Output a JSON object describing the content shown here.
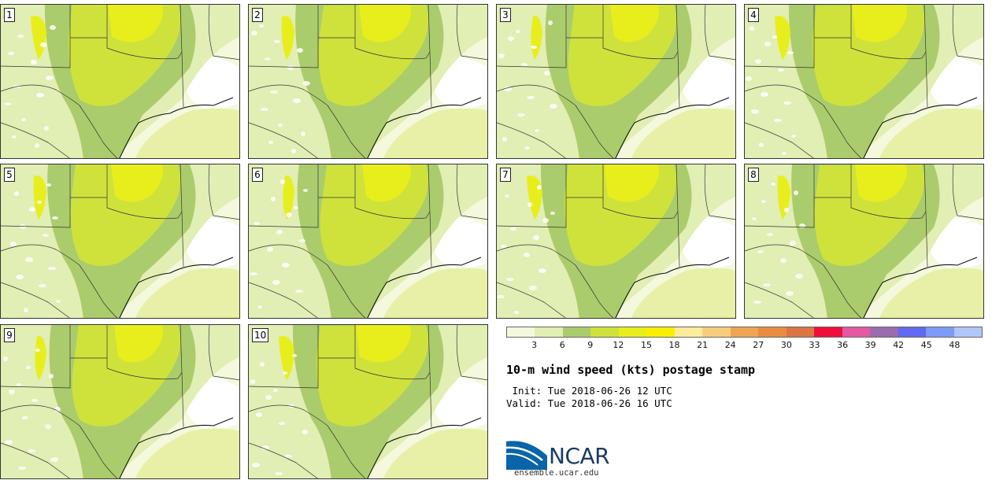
{
  "panels": [
    {
      "label": "1"
    },
    {
      "label": "2"
    },
    {
      "label": "3"
    },
    {
      "label": "4"
    },
    {
      "label": "5"
    },
    {
      "label": "6"
    },
    {
      "label": "7"
    },
    {
      "label": "8"
    },
    {
      "label": "9"
    },
    {
      "label": "10"
    }
  ],
  "colorbar": {
    "tick_labels": [
      "3",
      "6",
      "9",
      "12",
      "15",
      "18",
      "21",
      "24",
      "27",
      "30",
      "33",
      "36",
      "39",
      "42",
      "45",
      "48"
    ],
    "colors": [
      "#f4f8dc",
      "#e1eeb4",
      "#abcc6c",
      "#cfe23c",
      "#e8ee1c",
      "#faef00",
      "#fcec9c",
      "#f6cd7c",
      "#efa552",
      "#e98c40",
      "#dc7544",
      "#ee0f3b",
      "#e459a2",
      "#9c6cae",
      "#6269f2",
      "#7d9bfb",
      "#b1c7fb"
    ]
  },
  "title": "10-m wind speed (kts) postage stamp",
  "init": " Init: Tue 2018-06-26 12 UTC",
  "valid": "Valid: Tue 2018-06-26 16 UTC",
  "logo": {
    "text": "NCAR",
    "url": "ensemble.ucar.edu"
  }
}
